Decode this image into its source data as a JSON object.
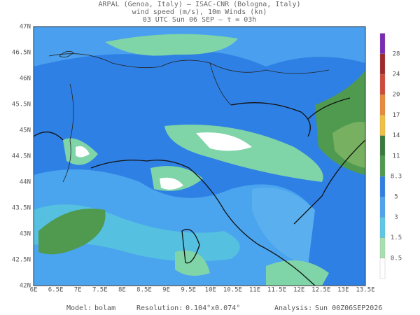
{
  "header": {
    "line1": "ARPAL (Genoa, Italy)  —  ISAC-CNR (Bologna, Italy)",
    "line2": "wind speed (m/s), 10m Winds (kn)",
    "line3": "03 UTC Sun 06 SEP  —  τ = 03h"
  },
  "map": {
    "lat_labels": [
      "42N",
      "42.5N",
      "43N",
      "43.5N",
      "44N",
      "44.5N",
      "45N",
      "45.5N",
      "46N",
      "46.5N",
      "47N"
    ],
    "lon_labels": [
      "6E",
      "6.5E",
      "7E",
      "7.5E",
      "8E",
      "8.5E",
      "9E",
      "9.5E",
      "10E",
      "10.5E",
      "11E",
      "11.5E",
      "12E",
      "12.5E",
      "13E",
      "13.5E"
    ]
  },
  "colorbar": {
    "labels": [
      "0.5",
      "1.5",
      "3",
      "5",
      "8.3",
      "11",
      "14",
      "17",
      "20",
      "24",
      "28"
    ]
  },
  "footer": {
    "model_label": "Model:",
    "model": "bolam",
    "resolution_label": "Resolution:",
    "resolution": "0.104°x0.074°",
    "analysis_label": "Analysis:",
    "analysis": "Sun 00Z06SEP2026"
  }
}
